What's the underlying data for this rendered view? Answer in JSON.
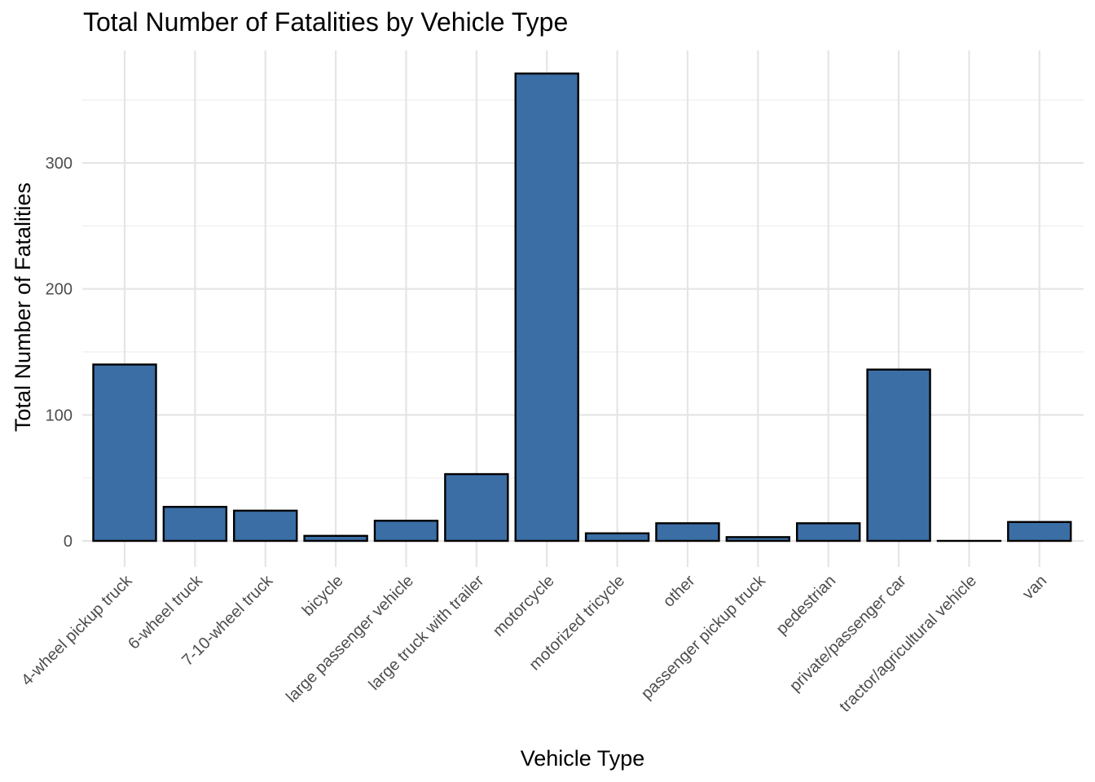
{
  "chart_data": {
    "type": "bar",
    "title": "Total Number of Fatalities by Vehicle Type",
    "xlabel": "Vehicle Type",
    "ylabel": "Total Number of Fatalities",
    "categories": [
      "4-wheel pickup truck",
      "6-wheel truck",
      "7-10-wheel truck",
      "bicycle",
      "large passenger vehicle",
      "large truck with trailer",
      "motorcycle",
      "motorized tricycle",
      "other",
      "passenger pickup truck",
      "pedestrian",
      "private/passenger car",
      "tractor/agricultural vehicle",
      "van"
    ],
    "values": [
      140,
      27,
      24,
      4,
      16,
      53,
      371,
      6,
      14,
      3,
      14,
      136,
      0,
      15
    ],
    "ylim": [
      -18,
      390
    ],
    "yticks": [
      0,
      100,
      200,
      300
    ],
    "grid": true,
    "bar_color": "#3a6ea5",
    "bar_outline": "#000000"
  }
}
